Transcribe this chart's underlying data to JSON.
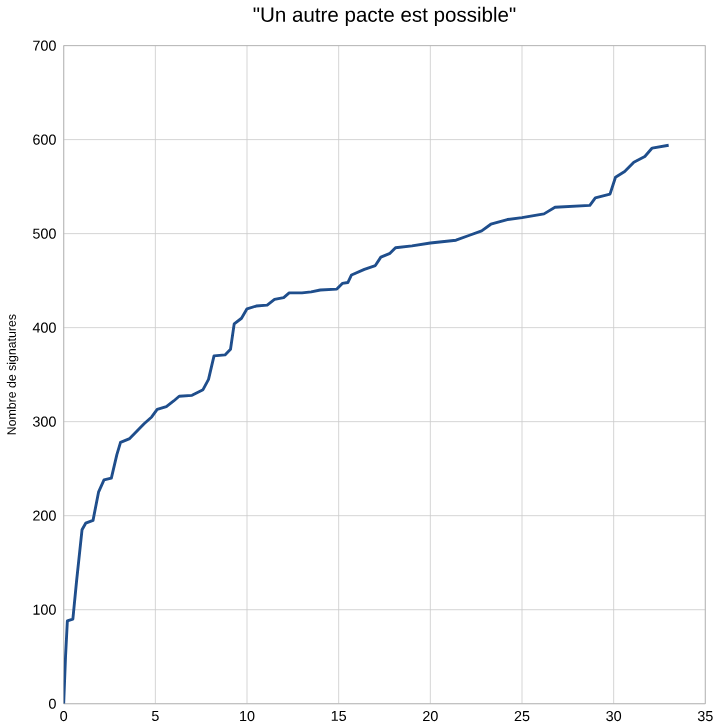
{
  "chart_data": {
    "type": "line",
    "title": "\"Un autre pacte est possible\"",
    "ylabel": "Nombre de signatures",
    "xlim": [
      0,
      35
    ],
    "xticks": [
      0,
      5,
      10,
      15,
      20,
      25,
      30,
      35
    ],
    "ylim": [
      0,
      700
    ],
    "yticks": [
      0,
      100,
      200,
      300,
      400,
      500,
      600,
      700
    ],
    "grid": true,
    "series": [
      {
        "color": "#1f4e8c",
        "x": [
          0,
          0.1,
          0.2,
          0.5,
          0.7,
          1.0,
          1.2,
          1.6,
          1.9,
          2.2,
          2.6,
          2.9,
          3.1,
          3.6,
          4.0,
          4.4,
          4.8,
          5.1,
          5.6,
          6.0,
          6.3,
          7.0,
          7.6,
          7.9,
          8.2,
          8.8,
          9.1,
          9.3,
          9.7,
          10.0,
          10.5,
          11.1,
          11.5,
          12.0,
          12.3,
          13.0,
          13.5,
          14.0,
          14.9,
          15.2,
          15.5,
          15.7,
          16.4,
          17.0,
          17.3,
          17.8,
          18.1,
          19.0,
          20.0,
          21.4,
          22.1,
          22.8,
          23.3,
          24.2,
          25.0,
          26.2,
          26.8,
          28.7,
          29.0,
          29.8,
          30.1,
          30.6,
          31.1,
          31.7,
          32.1,
          33.0
        ],
        "values": [
          0,
          50,
          88,
          90,
          130,
          185,
          192,
          195,
          225,
          238,
          240,
          265,
          278,
          282,
          290,
          298,
          305,
          313,
          316,
          322,
          327,
          328,
          334,
          345,
          370,
          371,
          377,
          404,
          410,
          420,
          423,
          424,
          430,
          432,
          437,
          437,
          438,
          440,
          441,
          447,
          448,
          456,
          462,
          466,
          475,
          479,
          485,
          487,
          490,
          493,
          498,
          503,
          510,
          515,
          517,
          521,
          528,
          530,
          538,
          542,
          560,
          566,
          576,
          582,
          591,
          594
        ]
      }
    ]
  }
}
